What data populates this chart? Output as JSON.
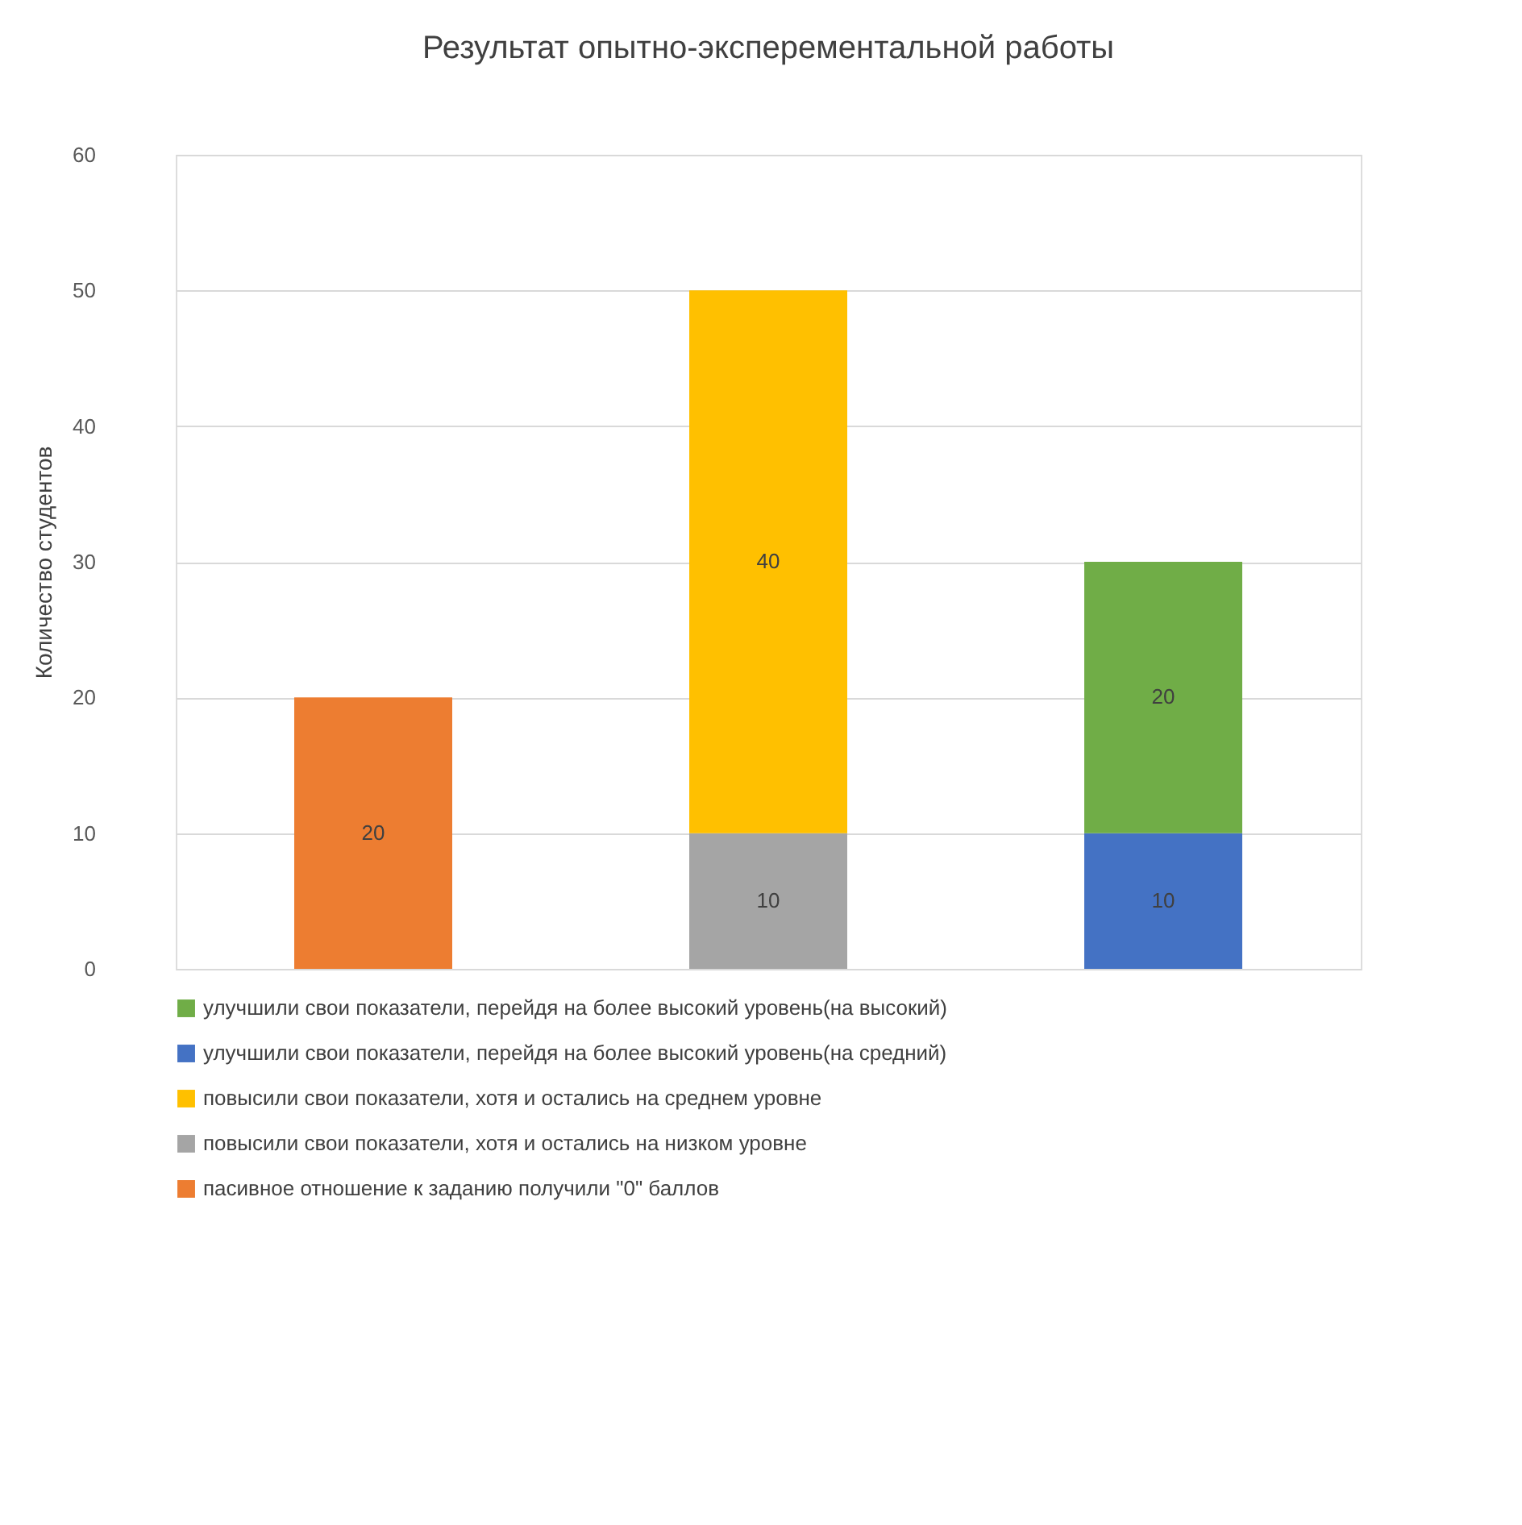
{
  "chart_data": {
    "type": "bar",
    "stacked": true,
    "title": "Результат опытно-эксперементальной работы",
    "ylabel": "Количество студентов",
    "categories": [
      null,
      null,
      null
    ],
    "series": [
      {
        "name": "пасивное отношение к заданию получили \"0\" баллов",
        "color": "#ed7d31",
        "values": [
          20,
          null,
          null
        ]
      },
      {
        "name": "повысили свои показатели, хотя и остались на низком уровне",
        "color": "#a5a5a5",
        "values": [
          null,
          10,
          null
        ]
      },
      {
        "name": "повысили свои показатели, хотя и остались на среднем уровне",
        "color": "#ffc000",
        "values": [
          null,
          40,
          null
        ]
      },
      {
        "name": "улучшили свои показатели, перейдя на более высокий уровень(на средний)",
        "color": "#4472c4",
        "values": [
          null,
          null,
          10
        ]
      },
      {
        "name": "улучшили свои показатели, перейдя на более высокий уровень(на высокий)",
        "color": "#70ad47",
        "values": [
          null,
          null,
          20
        ]
      }
    ],
    "ylim": [
      0,
      60
    ],
    "yticks": [
      0,
      10,
      20,
      30,
      40,
      50,
      60
    ],
    "grid": "y",
    "legend": "bottom",
    "data_labels": true,
    "tick_labels": "y"
  }
}
